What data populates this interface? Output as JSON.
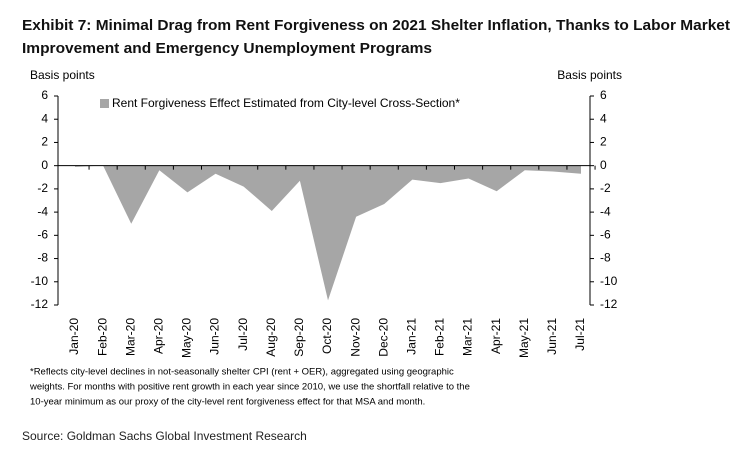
{
  "chart_data": {
    "type": "area",
    "title": [
      "Exhibit 7: Minimal Drag from Rent Forgiveness on 2021 Shelter Inflation, Thanks to Labor Market",
      "Improvement and Emergency Unemployment Programs"
    ],
    "y_label": "Basis points",
    "y2_label": "Basis points",
    "categories": [
      "Jan-20",
      "Feb-20",
      "Mar-20",
      "Apr-20",
      "May-20",
      "Jun-20",
      "Jul-20",
      "Aug-20",
      "Sep-20",
      "Oct-20",
      "Nov-20",
      "Dec-20",
      "Jan-21",
      "Feb-21",
      "Mar-21",
      "Apr-21",
      "May-21",
      "Jun-21",
      "Jul-21"
    ],
    "series": [
      {
        "name": "Rent Forgiveness Effect Estimated from City-level Cross-Section*",
        "color": "#a6a6a6",
        "values": [
          -0.1,
          0,
          -5,
          -0.4,
          -2.3,
          -0.7,
          -1.8,
          -3.9,
          -1.3,
          -11.6,
          -4.4,
          -3.3,
          -1.2,
          -1.5,
          -1.1,
          -2.2,
          -0.4,
          -0.5,
          -0.7
        ]
      }
    ],
    "ylim": [
      -12,
      6
    ],
    "yticks": [
      6,
      4,
      2,
      0,
      -2,
      -4,
      -6,
      -8,
      -10,
      -12
    ],
    "y2lim": [
      -12,
      6
    ],
    "y2ticks": [
      6,
      4,
      2,
      0,
      -2,
      -4,
      -6,
      -8,
      -10,
      -12
    ],
    "legend": "top",
    "note": [
      "*Reflects city-level declines in not-seasonally shelter CPI (rent + OER), aggregated using geographic",
      "weights. For months with positive rent growth in each year since 2010, we use the shortfall relative to the",
      "10-year minimum as our proxy of the city-level rent forgiveness effect for that MSA and month."
    ],
    "source": "Source: Goldman Sachs Global Investment Research"
  }
}
